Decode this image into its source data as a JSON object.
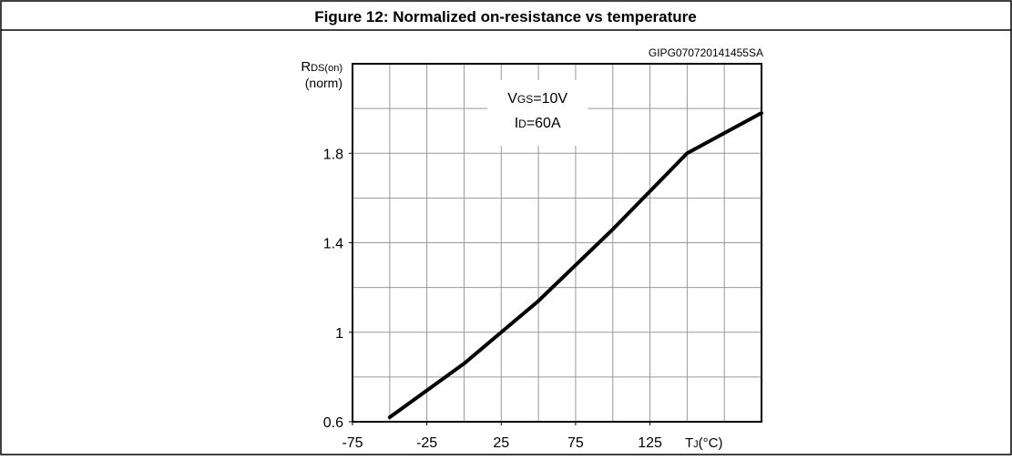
{
  "chart_data": {
    "type": "line",
    "title": "Figure 12: Normalized on-resistance vs temperature",
    "code": "GIPG070720141455SA",
    "y_label": {
      "main": "R",
      "sub": "DS(on)",
      "unit": "(norm)"
    },
    "x_label": {
      "main": "T",
      "sub": "J",
      "unit": "(°C)"
    },
    "annotations": [
      {
        "main": "V",
        "sub": "GS",
        "rest": "=10V"
      },
      {
        "main": "I",
        "sub": "D",
        "rest": "=60A"
      }
    ],
    "x": [
      -50,
      -25,
      0,
      25,
      50,
      75,
      100,
      125,
      150,
      175,
      200
    ],
    "series": [
      {
        "name": "RDS(on)",
        "color": "#000000",
        "values": [
          0.62,
          0.74,
          0.86,
          1.0,
          1.14,
          1.3,
          1.46,
          1.63,
          1.8,
          1.89,
          1.98
        ]
      }
    ],
    "xlim": [
      -75,
      200
    ],
    "xticks": [
      -75,
      -25,
      25,
      75,
      125
    ],
    "xgrid": [
      -50,
      -25,
      0,
      25,
      50,
      75,
      100,
      125,
      150,
      175
    ],
    "ylim": [
      0.6,
      2.2
    ],
    "yticks": [
      0.6,
      1,
      1.4,
      1.8
    ],
    "ygrid": [
      0.8,
      1.0,
      1.2,
      1.4,
      1.6,
      1.8,
      2.0
    ],
    "grid": true
  }
}
